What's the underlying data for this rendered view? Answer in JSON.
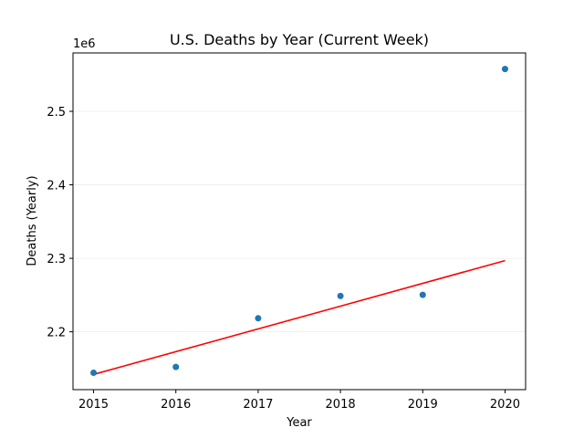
{
  "chart_data": {
    "type": "scatter",
    "title": "U.S. Deaths by Year (Current Week)",
    "xlabel": "Year",
    "ylabel": "Deaths (Yearly)",
    "y_offset_label": "1e6",
    "x_ticks": [
      2015,
      2016,
      2017,
      2018,
      2019,
      2020
    ],
    "x_tick_labels": [
      "2015",
      "2016",
      "2017",
      "2018",
      "2019",
      "2020"
    ],
    "y_ticks": [
      2.2,
      2.3,
      2.4,
      2.5
    ],
    "y_tick_labels": [
      "2.2",
      "2.3",
      "2.4",
      "2.5"
    ],
    "xlim": [
      2014.75,
      2020.25
    ],
    "ylim": [
      2.1213,
      2.5795
    ],
    "grid": "horizontal",
    "series": [
      {
        "kind": "scatter",
        "x": [
          2015,
          2016,
          2017,
          2018,
          2019,
          2020
        ],
        "y": [
          2.1443,
          2.1522,
          2.2184,
          2.2487,
          2.2503,
          2.5576
        ],
        "color": "#1f77b4"
      },
      {
        "kind": "trend-line",
        "x": [
          2015,
          2020
        ],
        "y": [
          2.142,
          2.2969
        ],
        "color": "#ff0000"
      }
    ]
  }
}
